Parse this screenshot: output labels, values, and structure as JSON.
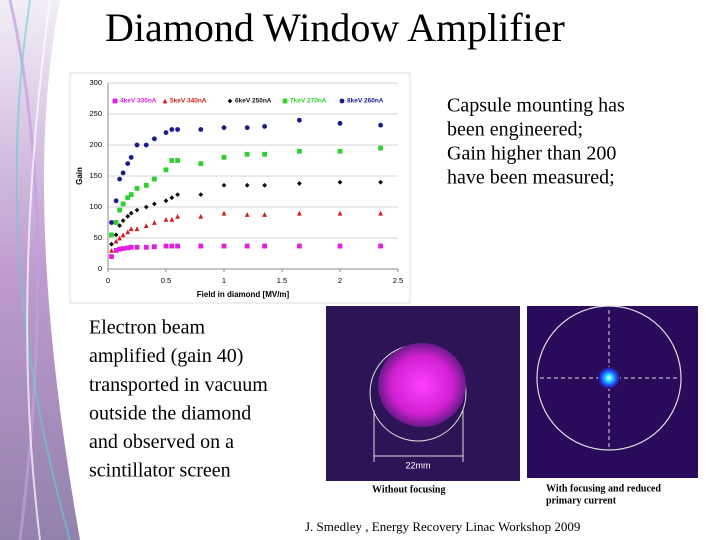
{
  "slide": {
    "title": "Diamond Window Amplifier",
    "right_text": [
      "Capsule mounting has",
      "been engineered;",
      "Gain higher than 200",
      "have been measured;"
    ],
    "left_text": [
      "Electron beam",
      "amplified (gain 40)",
      "transported in vacuum",
      "outside the diamond",
      "and observed on a",
      "scintillator screen"
    ],
    "image_left_scale": "22mm",
    "image_left_caption": "Without focusing",
    "image_right_caption": [
      "With focusing and reduced",
      "primary current"
    ],
    "footer": "J. Smedley , Energy Recovery Linac Workshop 2009"
  },
  "chart_data": {
    "type": "scatter",
    "x_label": "Field in diamond [MV/m]",
    "y_label": "Gain",
    "x": [
      0.03,
      0.07,
      0.1,
      0.13,
      0.17,
      0.2,
      0.25,
      0.33,
      0.4,
      0.5,
      0.55,
      0.6,
      0.8,
      1.0,
      1.2,
      1.35,
      1.65,
      2.0,
      2.35
    ],
    "series": [
      {
        "name": "4keV 330nA",
        "color": "#e020e0",
        "marker": "square",
        "values": [
          20,
          30,
          32,
          33,
          34,
          35,
          35,
          35,
          36,
          37,
          37,
          37,
          37,
          37,
          37,
          37,
          37,
          37,
          37
        ]
      },
      {
        "name": "5keV 340nA",
        "color": "#d02020",
        "marker": "triangle",
        "values": [
          30,
          45,
          50,
          55,
          60,
          65,
          65,
          70,
          75,
          80,
          80,
          85,
          85,
          90,
          88,
          88,
          90,
          90,
          90
        ]
      },
      {
        "name": "6keV 250nA",
        "color": "#101010",
        "marker": "diamond",
        "values": [
          40,
          55,
          70,
          78,
          85,
          90,
          95,
          100,
          105,
          110,
          115,
          120,
          120,
          135,
          135,
          135,
          138,
          140,
          140
        ]
      },
      {
        "name": "7keV 270nA",
        "color": "#30d030",
        "marker": "square",
        "values": [
          55,
          75,
          95,
          105,
          115,
          120,
          130,
          135,
          145,
          160,
          175,
          175,
          170,
          180,
          185,
          185,
          190,
          190,
          195
        ]
      },
      {
        "name": "8keV 260nA",
        "color": "#1a1a90",
        "marker": "circle",
        "values": [
          75,
          110,
          145,
          155,
          170,
          180,
          200,
          200,
          210,
          220,
          225,
          225,
          225,
          228,
          228,
          230,
          240,
          235,
          232
        ]
      }
    ],
    "xlim": [
      0,
      2.5
    ],
    "ylim": [
      0,
      300
    ],
    "xticks": [
      0,
      0.5,
      1,
      1.5,
      2,
      2.5
    ],
    "yticks": [
      0,
      50,
      100,
      150,
      200,
      250,
      300
    ],
    "grid": true
  }
}
